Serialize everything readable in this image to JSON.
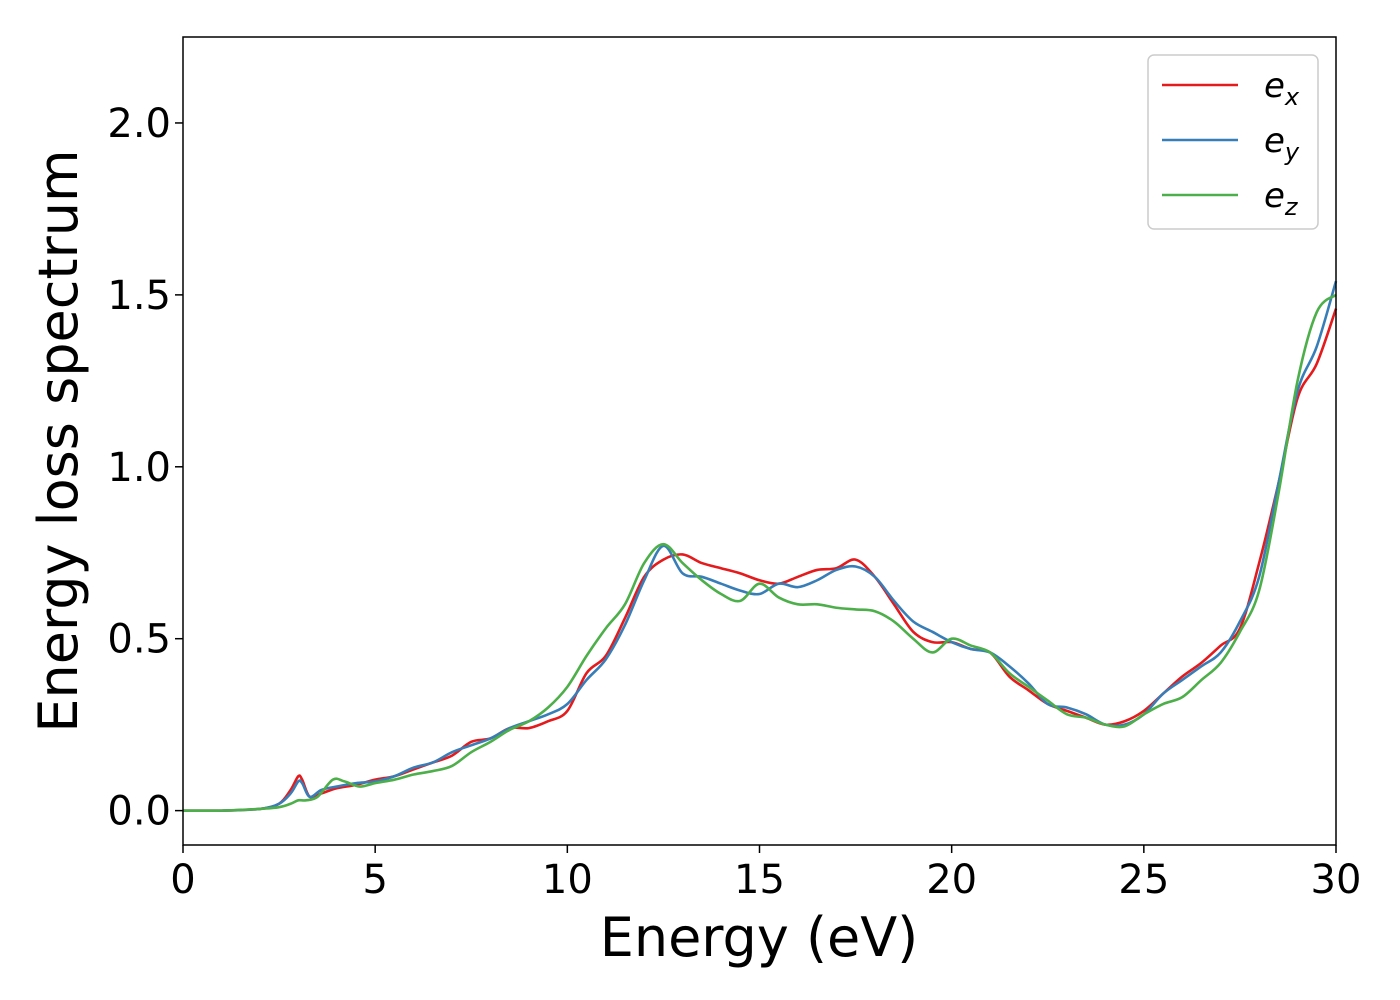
{
  "chart_data": {
    "type": "line",
    "title": "",
    "xlabel": "Energy (eV)",
    "ylabel": "Energy loss spectrum",
    "xlim": [
      0,
      30
    ],
    "ylim": [
      -0.1,
      2.25
    ],
    "xticks": [
      0,
      5,
      10,
      15,
      20,
      25,
      30
    ],
    "xtick_labels": [
      "0",
      "5",
      "10",
      "15",
      "20",
      "25",
      "30"
    ],
    "yticks": [
      0.0,
      0.5,
      1.0,
      1.5,
      2.0
    ],
    "ytick_labels": [
      "0.0",
      "0.5",
      "1.0",
      "1.5",
      "2.0"
    ],
    "grid": false,
    "legend_position": "top-right",
    "series": [
      {
        "name": "e_x",
        "label_base": "e",
        "label_sub": "x",
        "color": "#e41a1c",
        "x": [
          0,
          1,
          2,
          2.5,
          2.8,
          3.0,
          3.1,
          3.3,
          3.6,
          4.0,
          4.5,
          5.0,
          5.5,
          6.0,
          6.5,
          7.0,
          7.5,
          8.0,
          8.5,
          9.0,
          9.5,
          10.0,
          10.5,
          11.0,
          11.5,
          12.0,
          12.5,
          13.0,
          13.5,
          14.0,
          14.5,
          15.0,
          15.5,
          16.0,
          16.5,
          17.0,
          17.5,
          18.0,
          18.5,
          19.0,
          19.5,
          20.0,
          20.5,
          21.0,
          21.5,
          22.0,
          22.5,
          23.0,
          23.5,
          24.0,
          24.5,
          25.0,
          25.5,
          26.0,
          26.5,
          27.0,
          27.5,
          28.0,
          28.5,
          29.0,
          29.5,
          30.0
        ],
        "y": [
          0.0,
          0.0,
          0.005,
          0.02,
          0.06,
          0.1,
          0.09,
          0.04,
          0.05,
          0.065,
          0.075,
          0.09,
          0.1,
          0.12,
          0.14,
          0.16,
          0.2,
          0.21,
          0.24,
          0.24,
          0.26,
          0.29,
          0.4,
          0.45,
          0.56,
          0.68,
          0.73,
          0.745,
          0.72,
          0.705,
          0.69,
          0.67,
          0.66,
          0.68,
          0.7,
          0.705,
          0.73,
          0.68,
          0.6,
          0.52,
          0.49,
          0.49,
          0.47,
          0.46,
          0.39,
          0.35,
          0.31,
          0.29,
          0.27,
          0.25,
          0.26,
          0.29,
          0.34,
          0.39,
          0.43,
          0.48,
          0.53,
          0.72,
          0.95,
          1.2,
          1.3,
          1.46
        ]
      },
      {
        "name": "e_y",
        "label_base": "e",
        "label_sub": "y",
        "color": "#377eb8",
        "x": [
          0,
          1,
          2,
          2.5,
          2.8,
          3.0,
          3.1,
          3.3,
          3.6,
          4.0,
          4.5,
          5.0,
          5.5,
          6.0,
          6.5,
          7.0,
          7.5,
          8.0,
          8.5,
          9.0,
          9.5,
          10.0,
          10.5,
          11.0,
          11.5,
          12.0,
          12.5,
          13.0,
          13.5,
          14.0,
          14.5,
          15.0,
          15.5,
          16.0,
          16.5,
          17.0,
          17.5,
          18.0,
          18.5,
          19.0,
          19.5,
          20.0,
          20.5,
          21.0,
          21.5,
          22.0,
          22.5,
          23.0,
          23.5,
          24.0,
          24.5,
          25.0,
          25.5,
          26.0,
          26.5,
          27.0,
          27.5,
          28.0,
          28.5,
          29.0,
          29.5,
          30.0
        ],
        "y": [
          0.0,
          0.0,
          0.005,
          0.02,
          0.05,
          0.085,
          0.08,
          0.04,
          0.06,
          0.07,
          0.08,
          0.085,
          0.1,
          0.125,
          0.14,
          0.17,
          0.19,
          0.21,
          0.24,
          0.26,
          0.28,
          0.31,
          0.38,
          0.44,
          0.54,
          0.67,
          0.77,
          0.69,
          0.68,
          0.66,
          0.64,
          0.63,
          0.66,
          0.65,
          0.67,
          0.7,
          0.71,
          0.68,
          0.61,
          0.55,
          0.52,
          0.49,
          0.47,
          0.46,
          0.42,
          0.37,
          0.31,
          0.3,
          0.28,
          0.25,
          0.25,
          0.28,
          0.34,
          0.38,
          0.42,
          0.46,
          0.55,
          0.68,
          0.95,
          1.22,
          1.35,
          1.54
        ]
      },
      {
        "name": "e_z",
        "label_base": "e",
        "label_sub": "z",
        "color": "#4daf4a",
        "x": [
          0,
          1,
          2,
          2.5,
          2.8,
          3.0,
          3.2,
          3.5,
          3.9,
          4.2,
          4.6,
          5.0,
          5.5,
          6.0,
          6.5,
          7.0,
          7.5,
          8.0,
          8.5,
          9.0,
          9.5,
          10.0,
          10.5,
          11.0,
          11.5,
          12.0,
          12.5,
          13.0,
          13.5,
          14.0,
          14.5,
          15.0,
          15.5,
          16.0,
          16.5,
          17.0,
          17.5,
          18.0,
          18.5,
          19.0,
          19.5,
          20.0,
          20.5,
          21.0,
          21.5,
          22.0,
          22.5,
          23.0,
          23.5,
          24.0,
          24.5,
          25.0,
          25.5,
          26.0,
          26.5,
          27.0,
          27.5,
          28.0,
          28.5,
          29.0,
          29.5,
          30.0
        ],
        "y": [
          0.0,
          0.0,
          0.005,
          0.01,
          0.02,
          0.03,
          0.03,
          0.04,
          0.09,
          0.085,
          0.07,
          0.08,
          0.09,
          0.105,
          0.115,
          0.13,
          0.17,
          0.2,
          0.235,
          0.26,
          0.3,
          0.36,
          0.45,
          0.53,
          0.6,
          0.72,
          0.775,
          0.72,
          0.67,
          0.63,
          0.61,
          0.66,
          0.62,
          0.6,
          0.6,
          0.59,
          0.585,
          0.58,
          0.55,
          0.5,
          0.46,
          0.5,
          0.48,
          0.46,
          0.4,
          0.36,
          0.32,
          0.28,
          0.27,
          0.25,
          0.245,
          0.28,
          0.31,
          0.33,
          0.38,
          0.43,
          0.52,
          0.64,
          0.92,
          1.25,
          1.45,
          1.5
        ]
      }
    ]
  }
}
